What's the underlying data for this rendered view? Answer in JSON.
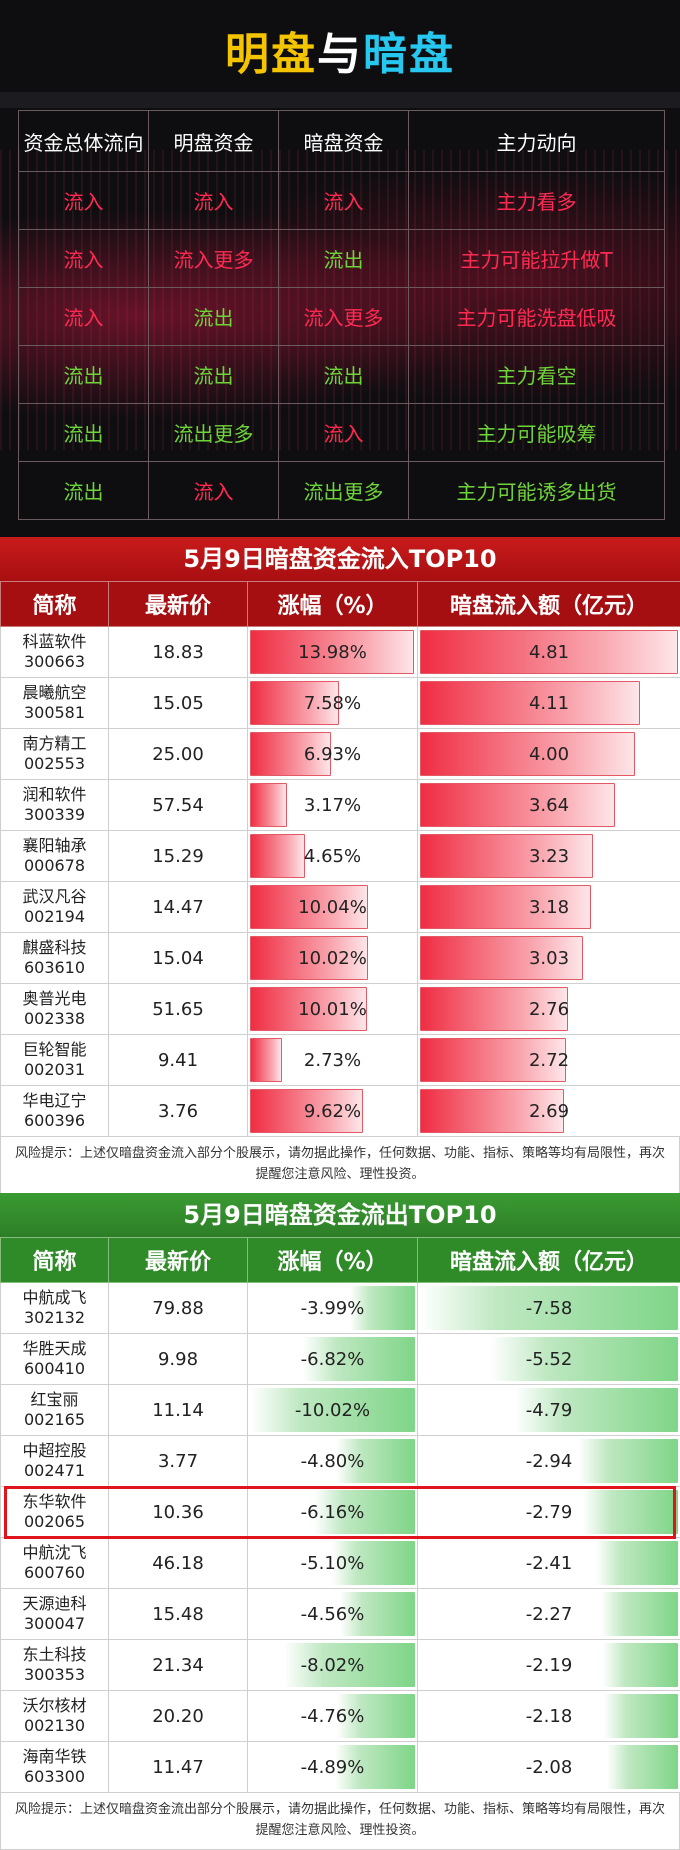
{
  "header": {
    "title_part1": "明盘",
    "title_part2": "与",
    "title_part3": "暗盘"
  },
  "legend": {
    "columns": [
      "资金总体流向",
      "明盘资金",
      "暗盘资金",
      "主力动向"
    ],
    "rows": [
      {
        "cells": [
          "流入",
          "流入",
          "流入",
          "主力看多"
        ],
        "colors": [
          "red",
          "red",
          "red",
          "red"
        ]
      },
      {
        "cells": [
          "流入",
          "流入更多",
          "流出",
          "主力可能拉升做T"
        ],
        "colors": [
          "red",
          "red",
          "green",
          "red"
        ]
      },
      {
        "cells": [
          "流入",
          "流出",
          "流入更多",
          "主力可能洗盘低吸"
        ],
        "colors": [
          "red",
          "green",
          "red",
          "red"
        ]
      },
      {
        "cells": [
          "流出",
          "流出",
          "流出",
          "主力看空"
        ],
        "colors": [
          "green",
          "green",
          "green",
          "green"
        ]
      },
      {
        "cells": [
          "流出",
          "流出更多",
          "流入",
          "主力可能吸筹"
        ],
        "colors": [
          "green",
          "green",
          "red",
          "green"
        ]
      },
      {
        "cells": [
          "流出",
          "流入",
          "流出更多",
          "主力可能诱多出货"
        ],
        "colors": [
          "green",
          "red",
          "green",
          "green"
        ]
      }
    ],
    "colors": {
      "red": "#ff2a52",
      "green": "#6fd33a"
    }
  },
  "inflow": {
    "title": "5月9日暗盘资金流入TOP10",
    "columns": [
      "简称",
      "最新价",
      "涨幅（%）",
      "暗盘流入额（亿元）"
    ],
    "rows": [
      {
        "name": "科蓝软件",
        "code": "300663",
        "price": "18.83",
        "change": "13.98%",
        "amount": "4.81"
      },
      {
        "name": "晨曦航空",
        "code": "300581",
        "price": "15.05",
        "change": "7.58%",
        "amount": "4.11"
      },
      {
        "name": "南方精工",
        "code": "002553",
        "price": "25.00",
        "change": "6.93%",
        "amount": "4.00"
      },
      {
        "name": "润和软件",
        "code": "300339",
        "price": "57.54",
        "change": "3.17%",
        "amount": "3.64"
      },
      {
        "name": "襄阳轴承",
        "code": "000678",
        "price": "15.29",
        "change": "4.65%",
        "amount": "3.23"
      },
      {
        "name": "武汉凡谷",
        "code": "002194",
        "price": "14.47",
        "change": "10.04%",
        "amount": "3.18"
      },
      {
        "name": "麒盛科技",
        "code": "603610",
        "price": "15.04",
        "change": "10.02%",
        "amount": "3.03"
      },
      {
        "name": "奥普光电",
        "code": "002338",
        "price": "51.65",
        "change": "10.01%",
        "amount": "2.76"
      },
      {
        "name": "巨轮智能",
        "code": "002031",
        "price": "9.41",
        "change": "2.73%",
        "amount": "2.72"
      },
      {
        "name": "华电辽宁",
        "code": "600396",
        "price": "3.76",
        "change": "9.62%",
        "amount": "2.69"
      }
    ],
    "risk": "风险提示：上述仅暗盘资金流入部分个股展示，请勿据此操作，任何数据、功能、指标、策略等均有局限性，再次提醒您注意风险、理性投资。"
  },
  "outflow": {
    "title": "5月9日暗盘资金流出TOP10",
    "columns": [
      "简称",
      "最新价",
      "涨幅（%）",
      "暗盘流入额（亿元）"
    ],
    "highlight_code": "002065",
    "rows": [
      {
        "name": "中航成飞",
        "code": "302132",
        "price": "79.88",
        "change": "-3.99%",
        "amount": "-7.58"
      },
      {
        "name": "华胜天成",
        "code": "600410",
        "price": "9.98",
        "change": "-6.82%",
        "amount": "-5.52"
      },
      {
        "name": "红宝丽",
        "code": "002165",
        "price": "11.14",
        "change": "-10.02%",
        "amount": "-4.79"
      },
      {
        "name": "中超控股",
        "code": "002471",
        "price": "3.77",
        "change": "-4.80%",
        "amount": "-2.94"
      },
      {
        "name": "东华软件",
        "code": "002065",
        "price": "10.36",
        "change": "-6.16%",
        "amount": "-2.79"
      },
      {
        "name": "中航沈飞",
        "code": "600760",
        "price": "46.18",
        "change": "-5.10%",
        "amount": "-2.41"
      },
      {
        "name": "天源迪科",
        "code": "300047",
        "price": "15.48",
        "change": "-4.56%",
        "amount": "-2.27"
      },
      {
        "name": "东土科技",
        "code": "300353",
        "price": "21.34",
        "change": "-8.02%",
        "amount": "-2.19"
      },
      {
        "name": "沃尔核材",
        "code": "002130",
        "price": "20.20",
        "change": "-4.76%",
        "amount": "-2.18"
      },
      {
        "name": "海南华铁",
        "code": "603300",
        "price": "11.47",
        "change": "-4.89%",
        "amount": "-2.08"
      }
    ],
    "risk": "风险提示：上述仅暗盘资金流出部分个股展示，请勿据此操作，任何数据、功能、指标、策略等均有局限性，再次提醒您注意风险、理性投资。"
  }
}
